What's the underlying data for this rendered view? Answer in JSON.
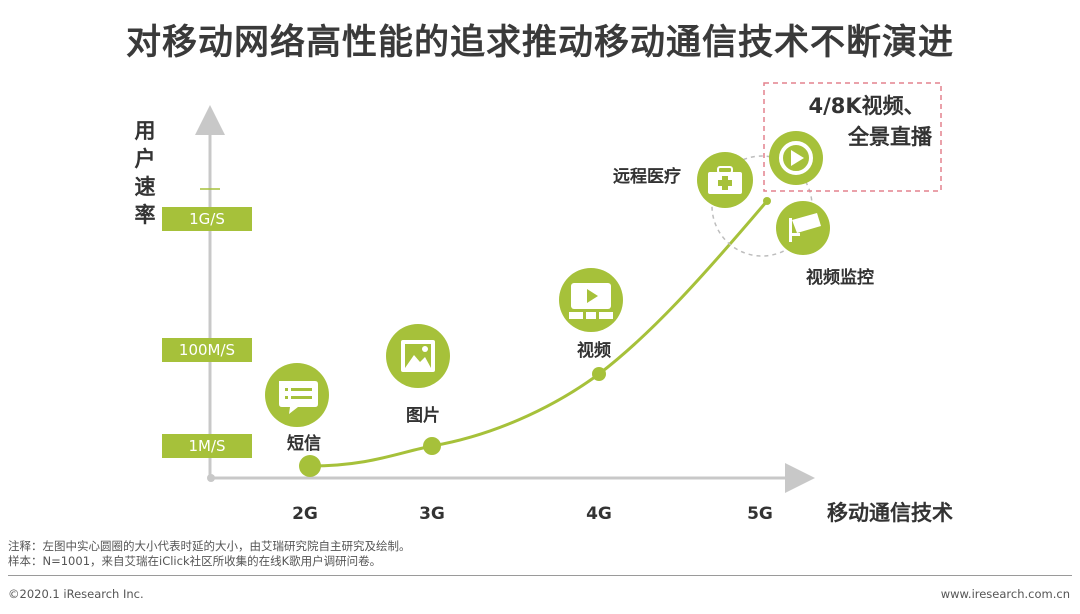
{
  "title": "对移动网络高性能的追求推动移动通信技术不断演进",
  "colors": {
    "accent": "#a6c13a",
    "axis": "#c8c8c8",
    "dashed_box": "#e4828d",
    "text": "#333333"
  },
  "chart_data": {
    "type": "line",
    "ylabel": "用户速率",
    "xlabel": "移动通信技术",
    "y_ticks": [
      "1M/S",
      "100M/S",
      "1G/S"
    ],
    "x_ticks": [
      "2G",
      "3G",
      "4G",
      "5G"
    ],
    "scatter_points": [
      "2G",
      "3G",
      "4G",
      "5G"
    ],
    "applications": [
      {
        "label": "短信",
        "icon": "chat-message-icon",
        "generation": "2G"
      },
      {
        "label": "图片",
        "icon": "picture-icon",
        "generation": "3G"
      },
      {
        "label": "视频",
        "icon": "video-screen-icon",
        "generation": "4G"
      },
      {
        "label": "远程医疗",
        "icon": "medical-kit-icon",
        "generation": "5G"
      },
      {
        "label": "4/8K视频、全景直播",
        "icon": "play-button-icon",
        "generation": "5G",
        "highlighted": true
      },
      {
        "label": "视频监控",
        "icon": "surveillance-camera-icon",
        "generation": "5G"
      }
    ]
  },
  "notes": {
    "line1": "注释：左图中实心圆圈的大小代表时延的大小，由艾瑞研究院自主研究及绘制。",
    "line2": "样本：N=1001，来自艾瑞在iClick社区所收集的在线K歌用户调研问卷。"
  },
  "footer": {
    "left": "©2020.1 iResearch Inc.",
    "right": "www.iresearch.com.cn"
  }
}
